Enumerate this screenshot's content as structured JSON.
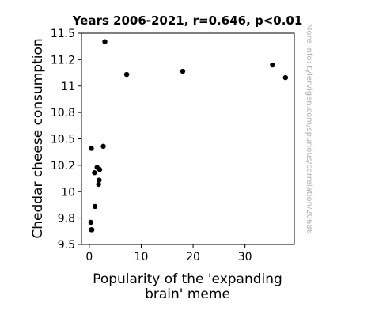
{
  "chart_data": {
    "type": "scatter",
    "title": "Years 2006-2021, r=0.646, p<0.01",
    "xlabel_lines": [
      "Popularity of the 'expanding",
      "brain' meme"
    ],
    "ylabel": "Cheddar cheese consumption",
    "xlim": [
      -1.5,
      39.5
    ],
    "ylim": [
      9.5,
      11.5
    ],
    "xticks": [
      0,
      10,
      20,
      30
    ],
    "xtick_labels": [
      "0",
      "10",
      "20",
      "30"
    ],
    "yticks": [
      9.5,
      9.75,
      10.0,
      10.25,
      10.5,
      10.75,
      11.0,
      11.25,
      11.5
    ],
    "ytick_labels": [
      "9.5",
      "9.8",
      "10",
      "10.2",
      "10.5",
      "10.8",
      "11",
      "11.2",
      "11.5"
    ],
    "grid": false,
    "marker_color": "#000000",
    "points": [
      {
        "x": 0.4,
        "y": 9.64
      },
      {
        "x": 0.5,
        "y": 9.64
      },
      {
        "x": 0.3,
        "y": 9.71
      },
      {
        "x": 1.1,
        "y": 9.86
      },
      {
        "x": 1.8,
        "y": 10.07
      },
      {
        "x": 1.9,
        "y": 10.11
      },
      {
        "x": 1.0,
        "y": 10.18
      },
      {
        "x": 1.5,
        "y": 10.23
      },
      {
        "x": 2.0,
        "y": 10.21
      },
      {
        "x": 0.4,
        "y": 10.41
      },
      {
        "x": 2.7,
        "y": 10.43
      },
      {
        "x": 3.0,
        "y": 11.42
      },
      {
        "x": 7.2,
        "y": 11.11
      },
      {
        "x": 18.0,
        "y": 11.14
      },
      {
        "x": 35.3,
        "y": 11.2
      },
      {
        "x": 37.8,
        "y": 11.08
      }
    ],
    "watermark": "More info: tylervigen.com/spurious/correlation/20686"
  }
}
